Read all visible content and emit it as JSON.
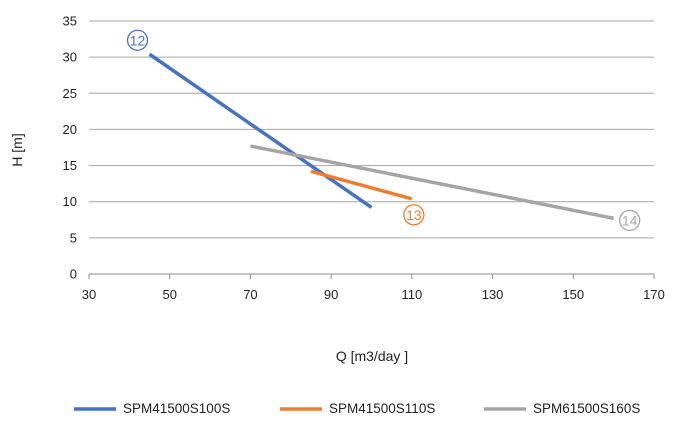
{
  "chart_data": {
    "type": "line",
    "xlabel": "Q [m3/day ]",
    "ylabel": "H [m]",
    "xlim": [
      30,
      170
    ],
    "ylim": [
      0,
      35
    ],
    "x_ticks": [
      30,
      50,
      70,
      90,
      110,
      130,
      150,
      170
    ],
    "y_ticks": [
      0,
      5,
      10,
      15,
      20,
      25,
      30,
      35
    ],
    "grid": "horizontal",
    "legend_position": "bottom",
    "series": [
      {
        "name": "SPM41500S100S",
        "color": "#4472c4",
        "marker": "⑫",
        "points": [
          [
            45,
            30.4
          ],
          [
            100,
            9.2
          ]
        ],
        "marker_anchor": "start"
      },
      {
        "name": "SPM41500S110S",
        "color": "#ed7d31",
        "marker": "⑬",
        "points": [
          [
            85,
            14.2
          ],
          [
            110,
            10.4
          ]
        ],
        "marker_anchor": "end"
      },
      {
        "name": "SPM61500S160S",
        "color": "#a5a5a5",
        "marker": "⑭",
        "points": [
          [
            70,
            17.7
          ],
          [
            160,
            7.7
          ]
        ],
        "marker_anchor": "end"
      }
    ]
  }
}
